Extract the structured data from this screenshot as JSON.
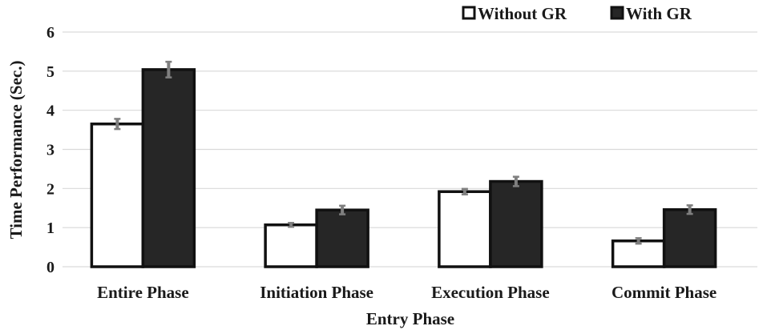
{
  "chart_data": {
    "type": "bar",
    "title": "",
    "xlabel": "Entry Phase",
    "ylabel": "Time Performance (Sec.)",
    "ylim": [
      0,
      6
    ],
    "yticks": [
      0,
      1,
      2,
      3,
      4,
      5,
      6
    ],
    "grid": true,
    "legend_position": "top-right",
    "categories": [
      "Entire Phase",
      "Initiation Phase",
      "Execution Phase",
      "Commit Phase"
    ],
    "series": [
      {
        "name": "Without GR",
        "values": [
          3.65,
          1.07,
          1.92,
          0.66
        ],
        "errors": [
          0.13,
          0.05,
          0.07,
          0.07
        ],
        "fill": "#ffffff",
        "stroke": "#111111"
      },
      {
        "name": "With GR",
        "values": [
          5.04,
          1.45,
          2.18,
          1.46
        ],
        "errors": [
          0.2,
          0.11,
          0.12,
          0.11
        ],
        "fill": "#262626",
        "stroke": "#111111"
      }
    ],
    "error_bar_color": "#7f7f7f",
    "grid_color": "#d9d9d9"
  }
}
